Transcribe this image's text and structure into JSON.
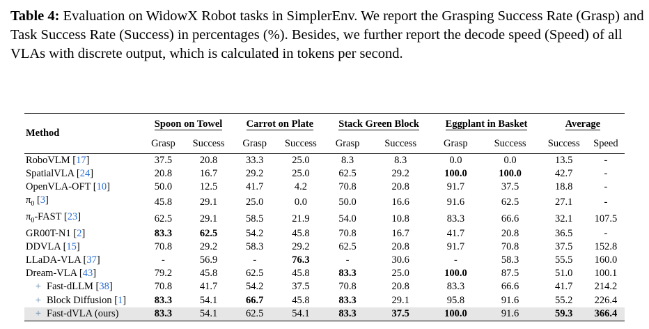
{
  "caption": {
    "label": "Table 4:",
    "text": " Evaluation on WidowX Robot tasks in SimplerEnv. We report the Grasping Success Rate (Grasp) and Task Success Rate (Success) in percentages (%). Besides, we further report the decode speed (Speed) of all VLAs with discrete output, which is calculated in tokens per second."
  },
  "table": {
    "method_header": "Method",
    "groups": [
      "Spoon on Towel",
      "Carrot on Plate",
      "Stack Green Block",
      "Eggplant in Basket",
      "Average"
    ],
    "subheaders": [
      "Grasp",
      "Success",
      "Grasp",
      "Success",
      "Grasp",
      "Success",
      "Grasp",
      "Success",
      "Success",
      "Speed"
    ],
    "rows": [
      {
        "name": "RoboVLM",
        "ref": "17",
        "cells": [
          "37.5",
          "20.8",
          "33.3",
          "25.0",
          "8.3",
          "8.3",
          "0.0",
          "0.0",
          "13.5",
          "-"
        ],
        "bold": []
      },
      {
        "name": "SpatialVLA",
        "ref": "24",
        "cells": [
          "20.8",
          "16.7",
          "29.2",
          "25.0",
          "62.5",
          "29.2",
          "100.0",
          "100.0",
          "42.7",
          "-"
        ],
        "bold": [
          6,
          7
        ]
      },
      {
        "name": "OpenVLA-OFT",
        "ref": "10",
        "cells": [
          "50.0",
          "12.5",
          "41.7",
          "4.2",
          "70.8",
          "20.8",
          "91.7",
          "37.5",
          "18.8",
          "-"
        ],
        "bold": []
      },
      {
        "name": "π",
        "sub": "0",
        "ref": "3",
        "cells": [
          "45.8",
          "29.1",
          "25.0",
          "0.0",
          "50.0",
          "16.6",
          "91.6",
          "62.5",
          "27.1",
          "-"
        ],
        "bold": []
      },
      {
        "name": "π",
        "sub": "0",
        "suffix": "-FAST",
        "ref": "23",
        "cells": [
          "62.5",
          "29.1",
          "58.5",
          "21.9",
          "54.0",
          "10.8",
          "83.3",
          "66.6",
          "32.1",
          "107.5"
        ],
        "bold": []
      },
      {
        "name": "GR00T-N1",
        "ref": "2",
        "cells": [
          "83.3",
          "62.5",
          "54.2",
          "45.8",
          "70.8",
          "16.7",
          "41.7",
          "20.8",
          "36.5",
          "-"
        ],
        "bold": [
          0,
          1
        ]
      },
      {
        "name": "DDVLA",
        "ref": "15",
        "cells": [
          "70.8",
          "29.2",
          "58.3",
          "29.2",
          "62.5",
          "20.8",
          "91.7",
          "70.8",
          "37.5",
          "152.8"
        ],
        "bold": []
      },
      {
        "name": "LLaDA-VLA",
        "ref": "37",
        "cells": [
          "-",
          "56.9",
          "-",
          "76.3",
          "-",
          "30.6",
          "-",
          "58.3",
          "55.5",
          "160.0"
        ],
        "bold": [
          3
        ]
      },
      {
        "name": "Dream-VLA",
        "ref": "43",
        "cells": [
          "79.2",
          "45.8",
          "62.5",
          "45.8",
          "83.3",
          "25.0",
          "100.0",
          "87.5",
          "51.0",
          "100.1"
        ],
        "bold": [
          4,
          6
        ]
      },
      {
        "prefix": "+",
        "name": "Fast-dLLM",
        "ref": "38",
        "cells": [
          "70.8",
          "41.7",
          "54.2",
          "37.5",
          "70.8",
          "20.8",
          "83.3",
          "66.6",
          "41.7",
          "214.2"
        ],
        "bold": []
      },
      {
        "prefix": "+",
        "name": "Block Diffusion",
        "ref": "1",
        "cells": [
          "83.3",
          "54.1",
          "66.7",
          "45.8",
          "83.3",
          "29.1",
          "95.8",
          "91.6",
          "55.2",
          "226.4"
        ],
        "bold": [
          0,
          2,
          4
        ]
      },
      {
        "prefix": "+",
        "name": "Fast-dVLA (ours)",
        "cells": [
          "83.3",
          "54.1",
          "62.5",
          "54.1",
          "83.3",
          "37.5",
          "100.0",
          "91.6",
          "59.3",
          "366.4"
        ],
        "bold": [
          0,
          4,
          5,
          6,
          8,
          9
        ],
        "highlight": true
      }
    ]
  },
  "colors": {
    "link": "#2a6fd6",
    "highlight_row": "#e6e6e6"
  }
}
